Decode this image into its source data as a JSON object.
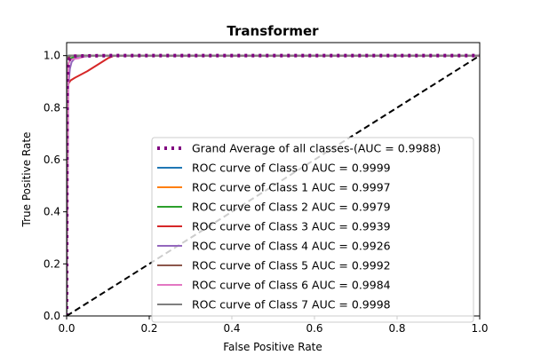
{
  "chart_data": {
    "type": "line",
    "title": "Transformer",
    "xlabel": "False Positive Rate",
    "ylabel": "True Positive Rate",
    "xlim": [
      0.0,
      1.0
    ],
    "ylim": [
      0.0,
      1.05
    ],
    "xticks": [
      0.0,
      0.2,
      0.4,
      0.6,
      0.8,
      1.0
    ],
    "yticks": [
      0.0,
      0.2,
      0.4,
      0.6,
      0.8,
      1.0
    ],
    "xtick_labels": [
      "0.0",
      "0.2",
      "0.4",
      "0.6",
      "0.8",
      "1.0"
    ],
    "ytick_labels": [
      "0.0",
      "0.2",
      "0.4",
      "0.6",
      "0.8",
      "1.0"
    ],
    "grid": false,
    "legend_position": "lower-right",
    "series": [
      {
        "name": "Grand Average of all classes-(AUC = 0.9988)",
        "color": "#800080",
        "style": "dotted",
        "x": [
          0.0,
          0.001,
          0.004,
          0.008,
          0.012,
          0.02,
          0.05,
          0.1,
          1.0
        ],
        "y": [
          0.0,
          0.9,
          0.975,
          0.99,
          0.995,
          0.998,
          0.999,
          1.0,
          1.0
        ]
      },
      {
        "name": "ROC curve of Class 0 AUC = 0.9999",
        "color": "#1f77b4",
        "style": "solid",
        "x": [
          0.0,
          0.0,
          0.005,
          1.0
        ],
        "y": [
          0.0,
          0.998,
          1.0,
          1.0
        ]
      },
      {
        "name": "ROC curve of Class 1 AUC = 0.9997",
        "color": "#ff7f0e",
        "style": "solid",
        "x": [
          0.0,
          0.0,
          0.008,
          1.0
        ],
        "y": [
          0.0,
          0.99,
          1.0,
          1.0
        ]
      },
      {
        "name": "ROC curve of Class 2 AUC = 0.9979",
        "color": "#2ca02c",
        "style": "solid",
        "x": [
          0.0,
          0.002,
          0.01,
          0.03,
          1.0
        ],
        "y": [
          0.0,
          0.96,
          0.99,
          1.0,
          1.0
        ]
      },
      {
        "name": "ROC curve of Class 3 AUC = 0.9939",
        "color": "#d62728",
        "style": "solid",
        "x": [
          0.0,
          0.003,
          0.01,
          0.02,
          0.05,
          0.08,
          0.1,
          0.115,
          1.0
        ],
        "y": [
          0.0,
          0.89,
          0.905,
          0.915,
          0.94,
          0.97,
          0.99,
          1.0,
          1.0
        ]
      },
      {
        "name": "ROC curve of Class 4 AUC = 0.9926",
        "color": "#9467bd",
        "style": "solid",
        "x": [
          0.0,
          0.004,
          0.008,
          0.012,
          0.02,
          0.06,
          1.0
        ],
        "y": [
          0.0,
          0.88,
          0.95,
          0.975,
          0.99,
          1.0,
          1.0
        ]
      },
      {
        "name": "ROC curve of Class 5 AUC = 0.9992",
        "color": "#8c564b",
        "style": "solid",
        "x": [
          0.0,
          0.0,
          0.01,
          1.0
        ],
        "y": [
          0.0,
          0.985,
          1.0,
          1.0
        ]
      },
      {
        "name": "ROC curve of Class 6 AUC = 0.9984",
        "color": "#e377c2",
        "style": "solid",
        "x": [
          0.0,
          0.004,
          0.01,
          0.03,
          0.05,
          1.0
        ],
        "y": [
          0.0,
          0.97,
          0.985,
          0.99,
          1.0,
          1.0
        ]
      },
      {
        "name": "ROC curve of Class 7 AUC = 0.9998",
        "color": "#7f7f7f",
        "style": "solid",
        "x": [
          0.0,
          0.0,
          0.004,
          1.0
        ],
        "y": [
          0.0,
          0.995,
          1.0,
          1.0
        ]
      }
    ],
    "reference_line": {
      "x": [
        0.0,
        1.0
      ],
      "y": [
        0.0,
        1.0
      ],
      "color": "#000000",
      "style": "dashed"
    }
  }
}
